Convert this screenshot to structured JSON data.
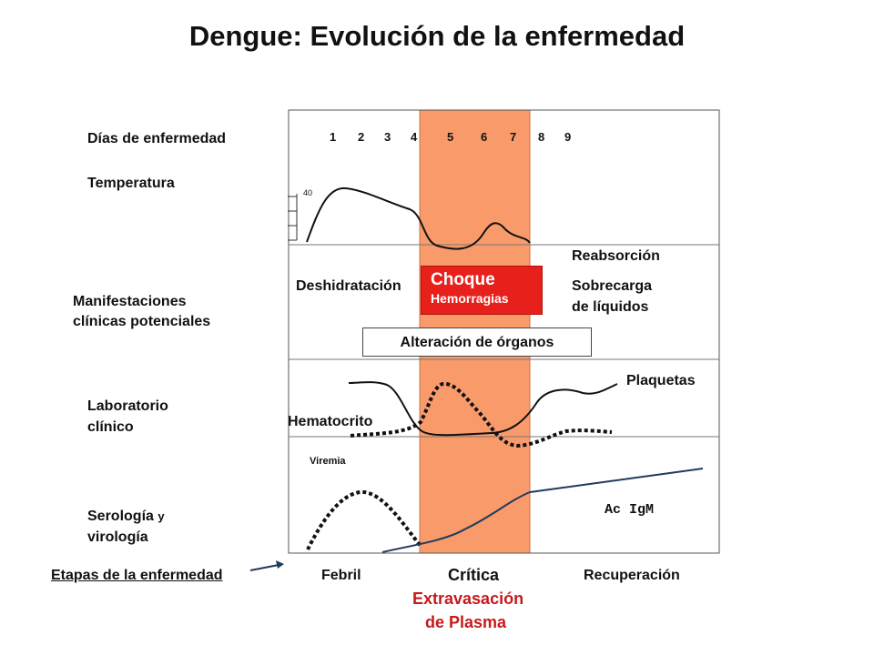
{
  "title": "Dengue: Evolución de la enfermedad",
  "row_labels": {
    "days": "Días de enfermedad",
    "temperature": "Temperatura",
    "manifestations_1": "Manifestaciones",
    "manifestations_2": "clínicas potenciales",
    "lab_1": "Laboratorio",
    "lab_2": "clínico",
    "serology_1": "Serología",
    "serology_1b": "y",
    "serology_2": "virología"
  },
  "days": [
    "1",
    "2",
    "3",
    "4",
    "5",
    "6",
    "7",
    "8",
    "9"
  ],
  "temperature_tick": "40",
  "manifestations": {
    "dehydration": "Deshidratación",
    "shock": "Choque",
    "hemorrhages": "Hemorragias",
    "reabsorption": "Reabsorción",
    "overload_1": "Sobrecarga",
    "overload_2": "de líquidos",
    "organ_alteration": "Alteración de órganos"
  },
  "lab": {
    "platelets": "Plaquetas",
    "hematocrit": "Hematocrito"
  },
  "serology": {
    "viremia": "Viremia",
    "igm": "Ac IgM"
  },
  "stages": {
    "label": "Etapas de la enfermedad",
    "febrile": "Febril",
    "critical": "Crítica",
    "extravasation_1": "Extravasación",
    "extravasation_2": "de Plasma",
    "recovery": "Recuperación"
  },
  "colors": {
    "critical_band": "#f99a6b",
    "shock_box": "#e8201c",
    "accent_red": "#c8191b",
    "igm_line": "#1f3b5c"
  }
}
